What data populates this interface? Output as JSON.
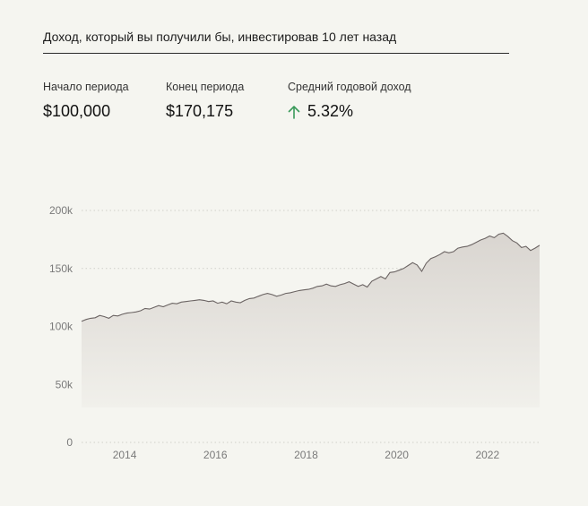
{
  "header": {
    "title": "Доход, который вы получили бы, инвестировав 10 лет назад"
  },
  "stats": {
    "start_label": "Начало периода",
    "start_value": "$100,000",
    "end_label": "Конец периода",
    "end_value": "$170,175",
    "avg_label": "Средний годовой доход",
    "avg_value": "5.32%",
    "avg_icon": "arrow-up-icon",
    "avg_color": "#3a9a5a"
  },
  "chart_data": {
    "type": "area",
    "xlabel": "",
    "ylabel": "",
    "ylim": [
      0,
      200000
    ],
    "xlim": [
      2013.05,
      2023.15
    ],
    "y_ticks": [
      {
        "value": 0,
        "label": "0"
      },
      {
        "value": 50000,
        "label": "50k"
      },
      {
        "value": 100000,
        "label": "100k"
      },
      {
        "value": 150000,
        "label": "150k"
      },
      {
        "value": 200000,
        "label": "200k"
      }
    ],
    "x_ticks": [
      {
        "value": 2014,
        "label": "2014"
      },
      {
        "value": 2016,
        "label": "2016"
      },
      {
        "value": 2018,
        "label": "2018"
      },
      {
        "value": 2020,
        "label": "2020"
      },
      {
        "value": 2022,
        "label": "2022"
      }
    ],
    "grid": true,
    "colors": {
      "line": "#6b6463",
      "fill_top": "#d9d5d0",
      "fill_bottom": "#f1f0eb",
      "grid": "#cfcfc9"
    },
    "x": [
      2013.05,
      2013.15,
      2013.25,
      2013.35,
      2013.45,
      2013.55,
      2013.65,
      2013.75,
      2013.85,
      2013.95,
      2014.05,
      2014.15,
      2014.25,
      2014.35,
      2014.45,
      2014.55,
      2014.65,
      2014.75,
      2014.85,
      2014.95,
      2015.05,
      2015.15,
      2015.25,
      2015.35,
      2015.45,
      2015.55,
      2015.65,
      2015.75,
      2015.85,
      2015.95,
      2016.05,
      2016.15,
      2016.25,
      2016.35,
      2016.45,
      2016.55,
      2016.65,
      2016.75,
      2016.85,
      2016.95,
      2017.05,
      2017.15,
      2017.25,
      2017.35,
      2017.45,
      2017.55,
      2017.65,
      2017.75,
      2017.85,
      2017.95,
      2018.05,
      2018.15,
      2018.25,
      2018.35,
      2018.45,
      2018.55,
      2018.65,
      2018.75,
      2018.85,
      2018.95,
      2019.05,
      2019.15,
      2019.25,
      2019.35,
      2019.45,
      2019.55,
      2019.65,
      2019.75,
      2019.85,
      2019.95,
      2020.05,
      2020.15,
      2020.25,
      2020.35,
      2020.45,
      2020.55,
      2020.65,
      2020.75,
      2020.85,
      2020.95,
      2021.05,
      2021.15,
      2021.25,
      2021.35,
      2021.45,
      2021.55,
      2021.65,
      2021.75,
      2021.85,
      2021.95,
      2022.05,
      2022.15,
      2022.25,
      2022.35,
      2022.45,
      2022.55,
      2022.65,
      2022.75,
      2022.85,
      2022.95,
      2023.05,
      2023.15
    ],
    "series": [
      {
        "values": [
          104500,
          106000,
          107000,
          107500,
          109500,
          108500,
          107000,
          109500,
          109000,
          110500,
          111500,
          112000,
          112500,
          113500,
          115500,
          115000,
          116500,
          118000,
          117000,
          118500,
          120000,
          119500,
          121000,
          121500,
          122000,
          122500,
          123000,
          122500,
          121500,
          122000,
          120000,
          121000,
          119500,
          122000,
          121000,
          120500,
          122500,
          124000,
          124500,
          126000,
          127500,
          128500,
          127500,
          126000,
          127000,
          128500,
          129000,
          130000,
          131000,
          131500,
          132000,
          133000,
          134500,
          135000,
          136500,
          135000,
          134500,
          136000,
          137000,
          138500,
          136500,
          134500,
          136000,
          134000,
          139000,
          141000,
          143000,
          141000,
          146500,
          147000,
          148500,
          150000,
          152500,
          155000,
          153000,
          147500,
          154500,
          158500,
          160000,
          162000,
          164500,
          163500,
          164500,
          167500,
          168500,
          169000,
          170500,
          172500,
          174500,
          176000,
          178000,
          176500,
          179500,
          180500,
          177500,
          174000,
          172000,
          168000,
          169000,
          165500,
          167500,
          170000
        ]
      }
    ]
  }
}
